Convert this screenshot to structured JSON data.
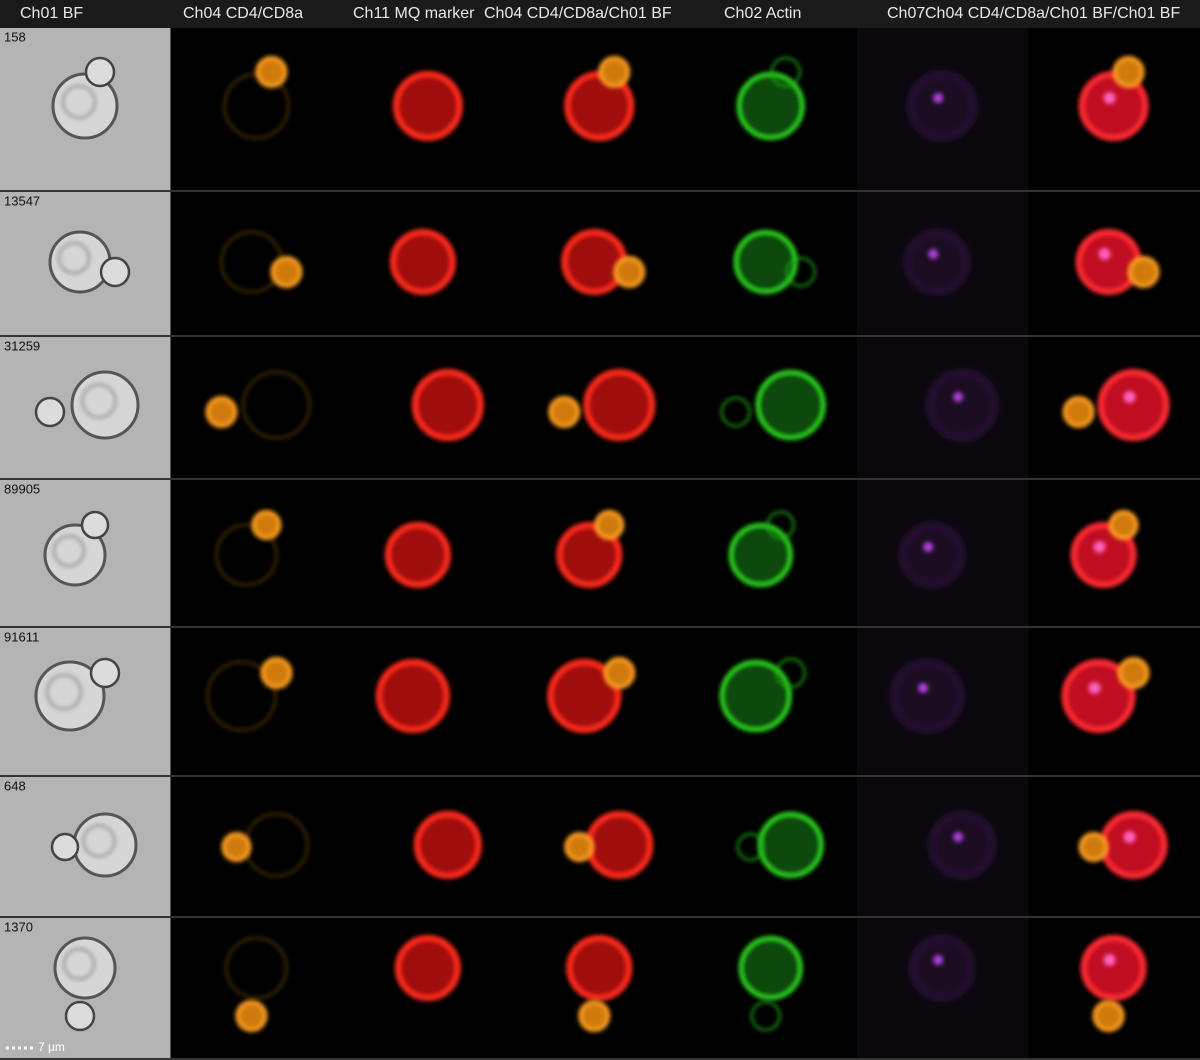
{
  "header": {
    "columns": [
      "Ch01 BF",
      "Ch04 CD4/CD8a",
      "Ch11 MQ marker",
      "Ch04 CD4/CD8a/Ch01 BF",
      "Ch02 Actin",
      "Ch07",
      "Ch04 CD4/CD8a/Ch01 BF/Ch01 BF"
    ]
  },
  "rows": [
    {
      "id": "158"
    },
    {
      "id": "13547"
    },
    {
      "id": "31259"
    },
    {
      "id": "89905"
    },
    {
      "id": "91611"
    },
    {
      "id": "648"
    },
    {
      "id": "1370"
    }
  ],
  "scale_bar": {
    "label": "7 µm"
  }
}
